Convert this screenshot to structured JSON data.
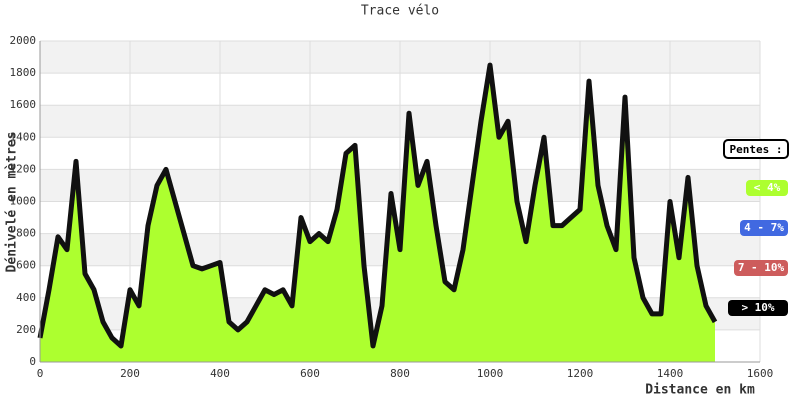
{
  "chart_data": {
    "type": "area",
    "title": "Trace vélo",
    "x_label": "Distance en km",
    "y_label": "Dénivelé en mètres",
    "x": [
      0,
      20,
      40,
      60,
      80,
      100,
      120,
      140,
      160,
      180,
      200,
      220,
      240,
      260,
      280,
      300,
      320,
      340,
      360,
      380,
      400,
      420,
      440,
      460,
      480,
      500,
      520,
      540,
      560,
      580,
      600,
      620,
      640,
      660,
      680,
      700,
      720,
      740,
      760,
      780,
      800,
      820,
      840,
      860,
      880,
      900,
      920,
      940,
      960,
      980,
      1000,
      1020,
      1040,
      1060,
      1080,
      1100,
      1120,
      1140,
      1160,
      1180,
      1200,
      1220,
      1240,
      1260,
      1280,
      1300,
      1320,
      1340,
      1360,
      1380,
      1400,
      1420,
      1440,
      1460,
      1480,
      1500
    ],
    "values": [
      150,
      450,
      780,
      700,
      1250,
      550,
      450,
      250,
      150,
      100,
      450,
      350,
      850,
      1100,
      1200,
      1000,
      800,
      600,
      580,
      600,
      620,
      250,
      200,
      250,
      350,
      450,
      420,
      450,
      350,
      900,
      750,
      800,
      750,
      950,
      1300,
      1350,
      600,
      100,
      350,
      1050,
      700,
      1550,
      1100,
      1250,
      850,
      500,
      450,
      700,
      1100,
      1500,
      1850,
      1400,
      1500,
      1000,
      750,
      1100,
      1400,
      850,
      850,
      900,
      950,
      1750,
      1100,
      850,
      700,
      1650,
      650,
      400,
      300,
      300,
      1000,
      650,
      1150,
      600,
      350,
      250
    ],
    "color": "#adff2f",
    "line_color": "#111111",
    "xlim": [
      0,
      1600
    ],
    "xticks": [
      0,
      200,
      400,
      600,
      800,
      1000,
      1200,
      1400,
      1600
    ],
    "ylim": [
      0,
      2000
    ],
    "yticks": [
      0,
      200,
      400,
      600,
      800,
      1000,
      1200,
      1400,
      1600,
      1800,
      2000
    ],
    "grid": true,
    "legend": {
      "title": "Pentes :",
      "items": [
        {
          "label": "< 4%",
          "color": "#adff2f",
          "text_color": "#ffffff"
        },
        {
          "label": "4 - 7%",
          "color": "#4169e1",
          "text_color": "#ffffff"
        },
        {
          "label": "7 - 10%",
          "color": "#cd5c5c",
          "text_color": "#ffffff"
        },
        {
          "label": "> 10%",
          "color": "#000000",
          "text_color": "#ffffff"
        }
      ]
    }
  }
}
